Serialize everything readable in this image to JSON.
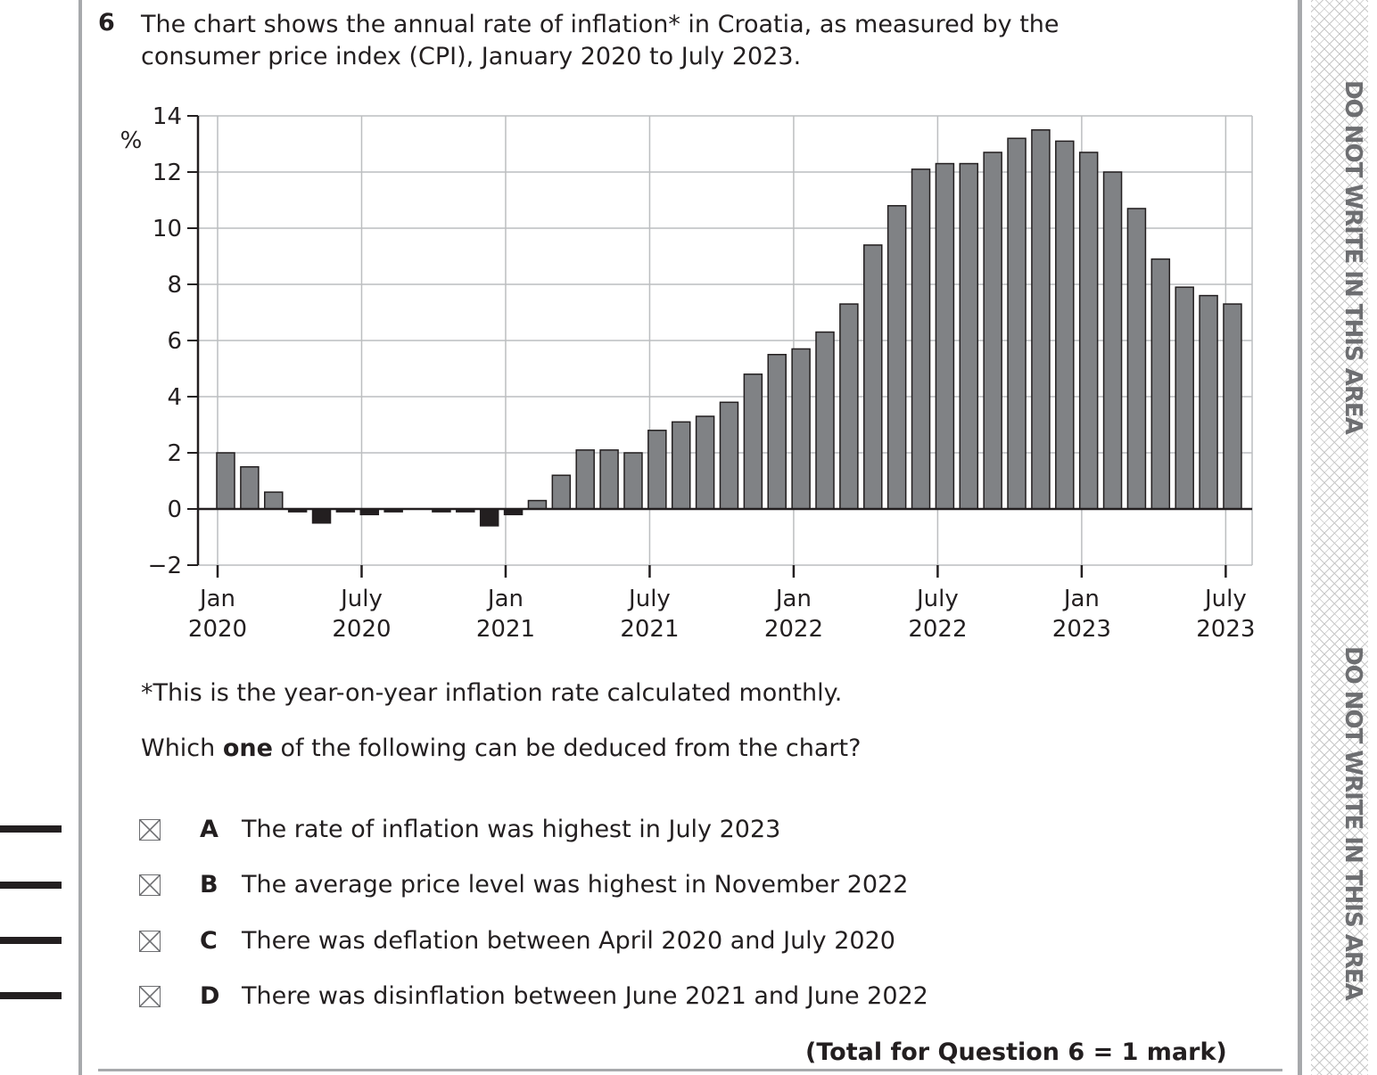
{
  "question": {
    "number": "6",
    "text": "The chart shows the annual rate of inflation* in Croatia, as measured by the consumer price index (CPI), January 2020 to July 2023.",
    "footnote": "*This is the year-on-year inflation rate calculated monthly.",
    "prompt_before": "Which ",
    "prompt_bold": "one",
    "prompt_after": " of the following can be deduced from the chart?",
    "options": [
      {
        "letter": "A",
        "text": "The rate of inflation was highest in July 2023"
      },
      {
        "letter": "B",
        "text": "The average price level was highest in November 2022"
      },
      {
        "letter": "C",
        "text": "There was deflation between April 2020 and July 2020"
      },
      {
        "letter": "D",
        "text": "There was disinflation between June 2021 and June 2022"
      }
    ],
    "total": "(Total for Question 6 = 1 mark)"
  },
  "margin_text": [
    "DO NOT WRITE IN THIS AREA",
    "DO NOT WRITE IN THIS AREA"
  ],
  "chart_data": {
    "type": "bar",
    "title": "",
    "ylabel": "%",
    "xlabel": "",
    "ylim": [
      -2,
      14
    ],
    "yticks": [
      "−2",
      "0",
      "2",
      "4",
      "6",
      "8",
      "10",
      "12",
      "14"
    ],
    "ytick_values": [
      -2,
      0,
      2,
      4,
      6,
      8,
      10,
      12,
      14
    ],
    "grid": true,
    "xtick_labels": [
      [
        "Jan",
        "2020"
      ],
      [
        "July",
        "2020"
      ],
      [
        "Jan",
        "2021"
      ],
      [
        "July",
        "2021"
      ],
      [
        "Jan",
        "2022"
      ],
      [
        "July",
        "2022"
      ],
      [
        "Jan",
        "2023"
      ],
      [
        "July",
        "2023"
      ]
    ],
    "xtick_month_index": [
      0,
      6,
      12,
      18,
      24,
      30,
      36,
      42
    ],
    "months_start": "Jan 2020",
    "values": [
      2.0,
      1.5,
      0.6,
      -0.1,
      -0.5,
      -0.1,
      -0.2,
      -0.1,
      0.0,
      -0.1,
      -0.1,
      -0.6,
      -0.2,
      0.3,
      1.2,
      2.1,
      2.1,
      2.0,
      2.8,
      3.1,
      3.3,
      3.8,
      4.8,
      5.5,
      5.7,
      6.3,
      7.3,
      9.4,
      10.8,
      12.1,
      12.3,
      12.3,
      12.7,
      13.2,
      13.5,
      13.1,
      12.7,
      12.0,
      10.7,
      8.9,
      7.9,
      7.6,
      7.3
    ],
    "colors": {
      "positive": "#808285",
      "negative": "#231f20"
    }
  }
}
